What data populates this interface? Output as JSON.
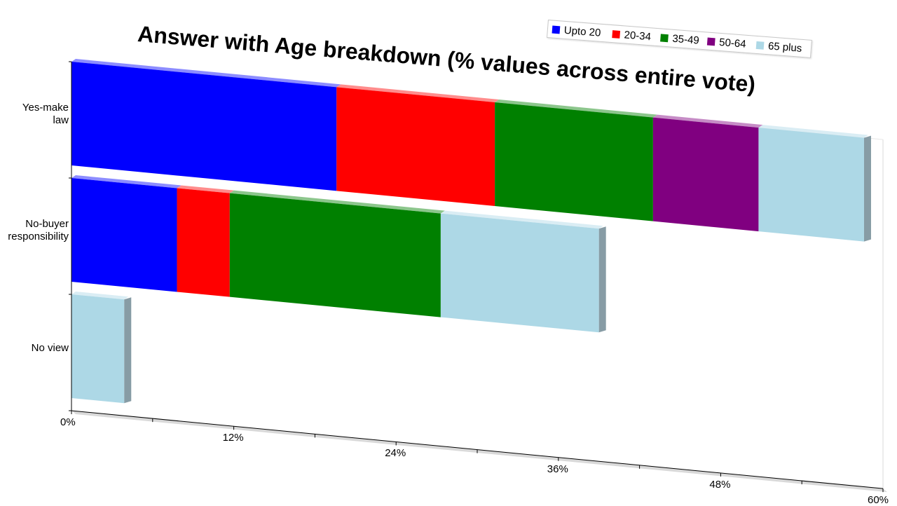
{
  "chart_data": {
    "type": "bar",
    "orientation": "horizontal",
    "stacked": true,
    "title": "Answer with Age breakdown (% values across entire vote)",
    "categories": [
      "Yes-make law",
      "No-buyer responsibility",
      "No view"
    ],
    "category_lines": [
      [
        "Yes-make",
        "law"
      ],
      [
        "No-buyer",
        "responsibility"
      ],
      [
        "No view"
      ]
    ],
    "series": [
      {
        "name": "Upto 20",
        "color": "#0000ff",
        "values": [
          19.6,
          7.8,
          0
        ]
      },
      {
        "name": "20-34",
        "color": "#ff0000",
        "values": [
          11.7,
          3.9,
          0
        ]
      },
      {
        "name": "35-49",
        "color": "#008000",
        "values": [
          11.7,
          15.6,
          0
        ]
      },
      {
        "name": "50-64",
        "color": "#800080",
        "values": [
          7.8,
          0,
          0
        ]
      },
      {
        "name": "65 plus",
        "color": "#add8e6",
        "values": [
          7.8,
          11.7,
          3.9
        ]
      }
    ],
    "x_ticks": [
      "0%",
      "12%",
      "24%",
      "36%",
      "48%",
      "60%"
    ],
    "xlim": [
      0,
      60
    ],
    "legend_position": "top-right",
    "grid": false
  }
}
